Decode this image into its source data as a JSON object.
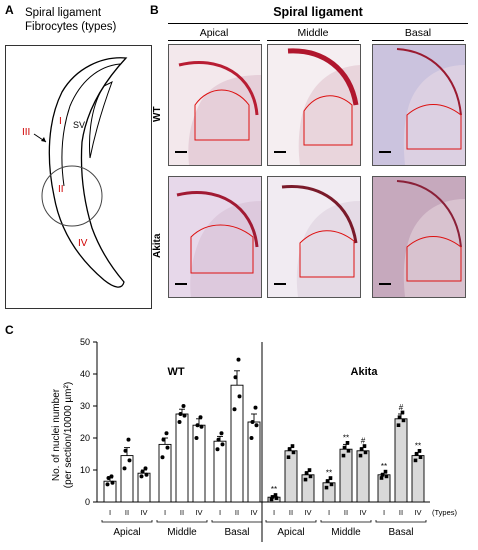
{
  "panelA": {
    "letter": "A",
    "title_line1": "Spiral ligament",
    "title_line2": "Fibrocytes (types)",
    "labels": {
      "sv": "SV",
      "t1": "I",
      "t2": "II",
      "t3": "III",
      "t4": "IV"
    }
  },
  "panelB": {
    "letter": "B",
    "title": "Spiral ligament",
    "columns": [
      "Apical",
      "Middle",
      "Basal"
    ],
    "rows": [
      "WT",
      "Akita"
    ]
  },
  "panelC": {
    "letter": "C",
    "ylabel_line1": "No. of nuclei number",
    "ylabel_line2": "(per section/10000 µm²)",
    "types_label": "(Types)",
    "group_labels": [
      "WT",
      "Akita"
    ],
    "region_labels": [
      "Apical",
      "Middle",
      "Basal",
      "Apical",
      "Middle",
      "Basal"
    ],
    "type_ticks": [
      "I",
      "II",
      "IV",
      "I",
      "II",
      "IV",
      "I",
      "II",
      "IV",
      "I",
      "II",
      "IV",
      "I",
      "II",
      "IV",
      "I",
      "II",
      "IV"
    ],
    "colors": {
      "wt_bar": "#ffffff",
      "akita_bar": "#d9d9d9",
      "dot": "#000000"
    }
  },
  "chart_data": {
    "type": "bar",
    "ylim": [
      0,
      50
    ],
    "yticks": [
      0,
      10,
      20,
      30,
      40,
      50
    ],
    "bars": [
      {
        "group": "WT",
        "region": "Apical",
        "type": "I",
        "mean": 6.5,
        "sem": 1.0,
        "points": [
          5.5,
          6.0,
          7.5,
          8.0
        ],
        "mark": ""
      },
      {
        "group": "WT",
        "region": "Apical",
        "type": "II",
        "mean": 14.5,
        "sem": 2.5,
        "points": [
          10.5,
          13.0,
          16.0,
          19.5
        ],
        "mark": ""
      },
      {
        "group": "WT",
        "region": "Apical",
        "type": "IV",
        "mean": 9.0,
        "sem": 1.0,
        "points": [
          8.0,
          8.5,
          9.5,
          10.5
        ],
        "mark": ""
      },
      {
        "group": "WT",
        "region": "Middle",
        "type": "I",
        "mean": 18.0,
        "sem": 2.0,
        "points": [
          14.0,
          17.0,
          19.5,
          21.5
        ],
        "mark": ""
      },
      {
        "group": "WT",
        "region": "Middle",
        "type": "II",
        "mean": 27.5,
        "sem": 1.5,
        "points": [
          25.0,
          27.0,
          27.5,
          30.0
        ],
        "mark": ""
      },
      {
        "group": "WT",
        "region": "Middle",
        "type": "IV",
        "mean": 24.0,
        "sem": 2.0,
        "points": [
          20.0,
          23.5,
          24.0,
          26.5
        ],
        "mark": ""
      },
      {
        "group": "WT",
        "region": "Basal",
        "type": "I",
        "mean": 19.0,
        "sem": 1.5,
        "points": [
          16.5,
          18.0,
          19.5,
          21.5
        ],
        "mark": ""
      },
      {
        "group": "WT",
        "region": "Basal",
        "type": "II",
        "mean": 36.5,
        "sem": 4.5,
        "points": [
          29.0,
          33.0,
          39.0,
          44.5
        ],
        "mark": ""
      },
      {
        "group": "WT",
        "region": "Basal",
        "type": "IV",
        "mean": 25.0,
        "sem": 2.5,
        "points": [
          20.0,
          24.0,
          25.0,
          29.5
        ],
        "mark": ""
      },
      {
        "group": "Akita",
        "region": "Apical",
        "type": "I",
        "mean": 1.5,
        "sem": 0.4,
        "points": [
          0.8,
          1.2,
          1.6,
          2.2
        ],
        "mark": "**"
      },
      {
        "group": "Akita",
        "region": "Apical",
        "type": "II",
        "mean": 16.0,
        "sem": 1.0,
        "points": [
          14.0,
          15.5,
          16.5,
          17.5
        ],
        "mark": ""
      },
      {
        "group": "Akita",
        "region": "Apical",
        "type": "IV",
        "mean": 8.5,
        "sem": 1.0,
        "points": [
          7.0,
          8.0,
          9.0,
          10.0
        ],
        "mark": ""
      },
      {
        "group": "Akita",
        "region": "Middle",
        "type": "I",
        "mean": 6.0,
        "sem": 1.0,
        "points": [
          4.5,
          5.5,
          6.5,
          7.5
        ],
        "mark": "**"
      },
      {
        "group": "Akita",
        "region": "Middle",
        "type": "II",
        "mean": 16.5,
        "sem": 1.5,
        "points": [
          14.5,
          16.0,
          17.0,
          18.5
        ],
        "mark": "**"
      },
      {
        "group": "Akita",
        "region": "Middle",
        "type": "IV",
        "mean": 16.0,
        "sem": 1.0,
        "points": [
          14.5,
          15.5,
          16.5,
          17.5
        ],
        "mark": "#"
      },
      {
        "group": "Akita",
        "region": "Basal",
        "type": "I",
        "mean": 8.5,
        "sem": 0.5,
        "points": [
          7.5,
          8.0,
          8.5,
          9.5
        ],
        "mark": "**"
      },
      {
        "group": "Akita",
        "region": "Basal",
        "type": "II",
        "mean": 26.0,
        "sem": 1.5,
        "points": [
          24.0,
          25.5,
          26.5,
          28.0
        ],
        "mark": "#"
      },
      {
        "group": "Akita",
        "region": "Basal",
        "type": "IV",
        "mean": 14.5,
        "sem": 1.0,
        "points": [
          13.0,
          14.0,
          15.0,
          16.0
        ],
        "mark": "**"
      }
    ]
  }
}
